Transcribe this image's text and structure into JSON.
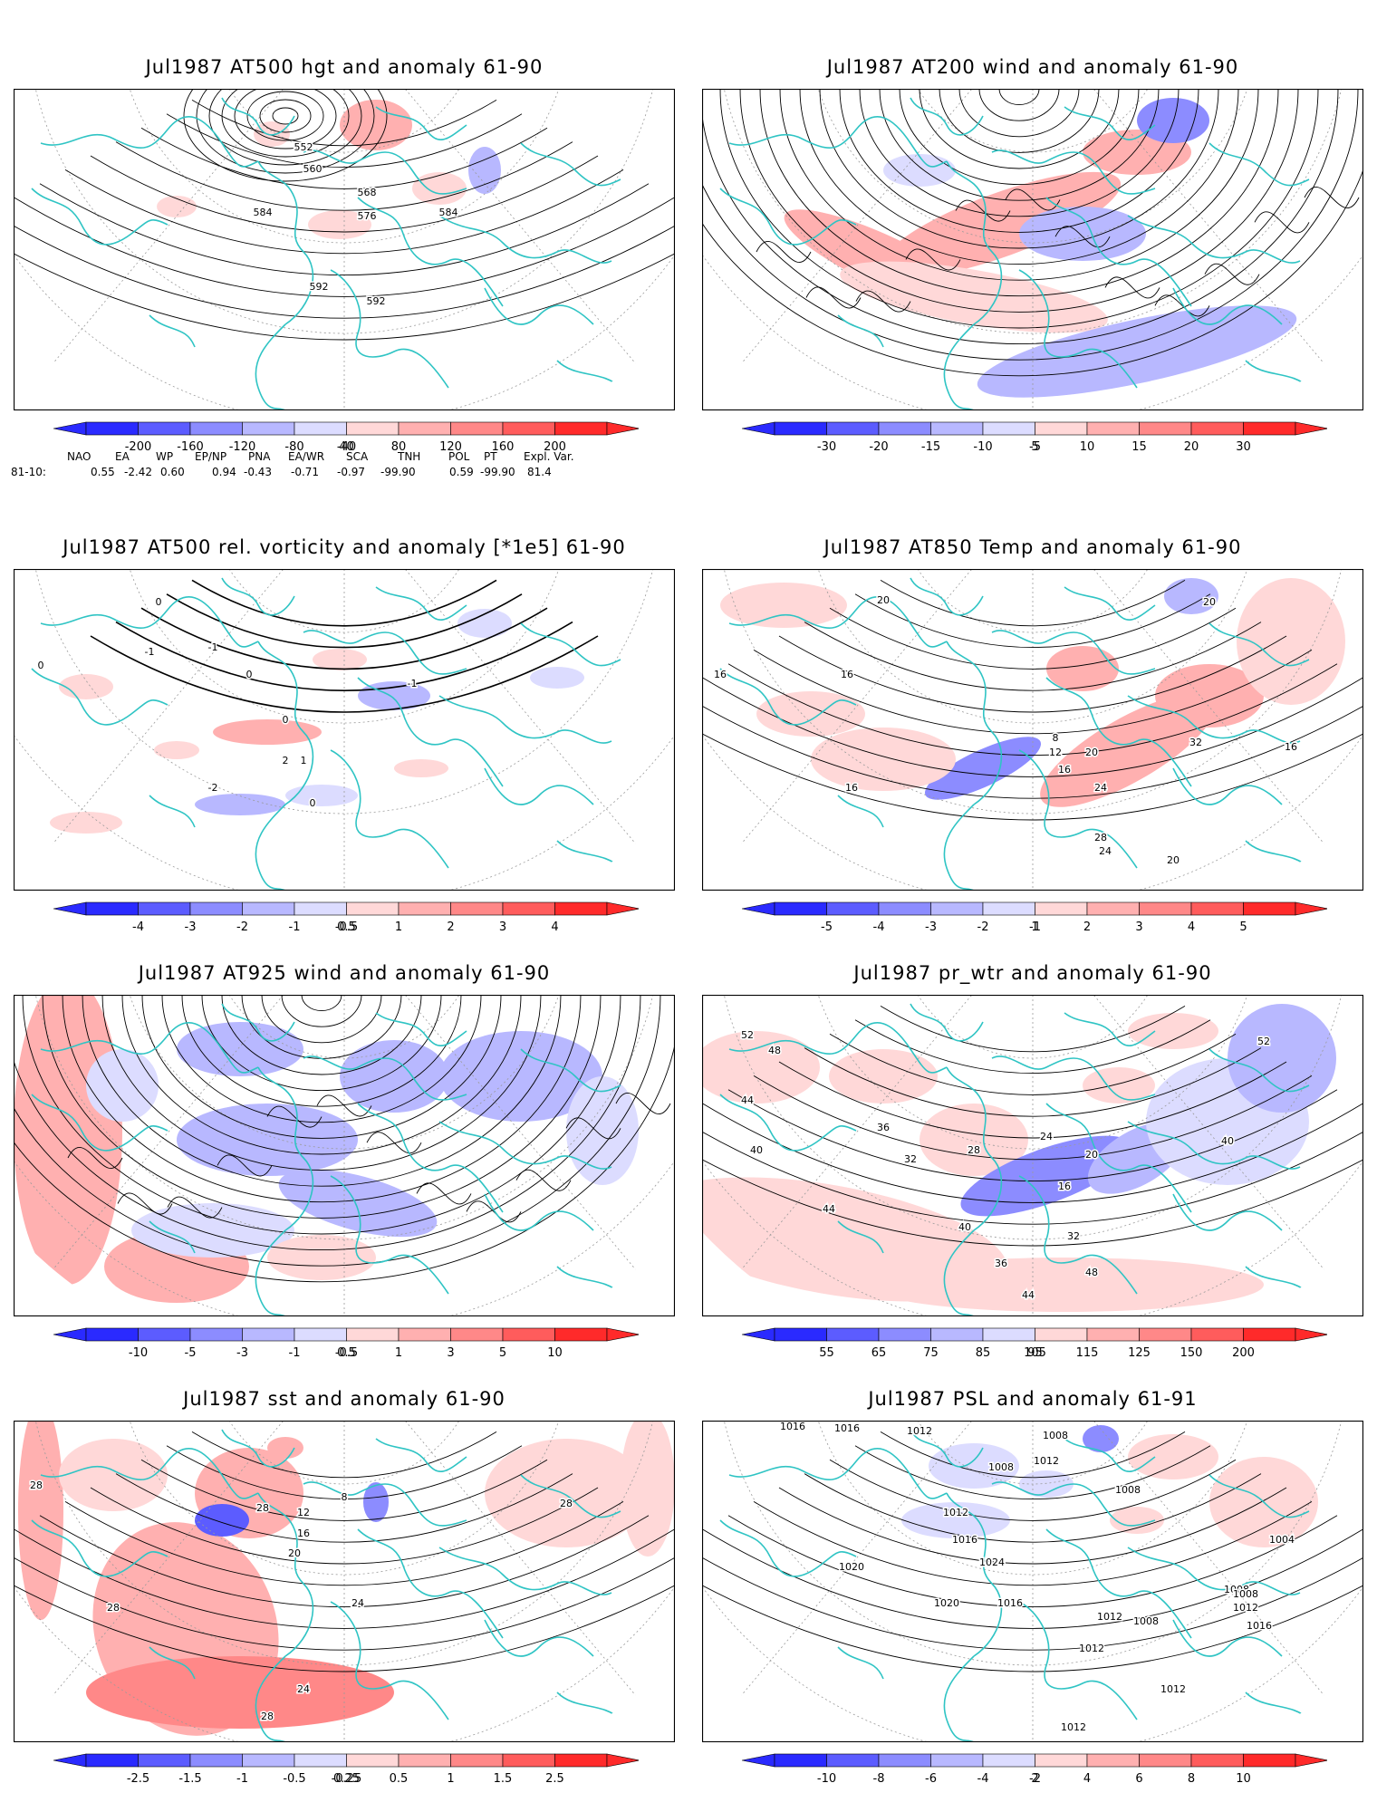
{
  "colors": {
    "coast": "#2fc4c4",
    "grid": "#9a9a9a",
    "contour": "#000000",
    "neg_scale": [
      "#2a2aff",
      "#5c5cff",
      "#8c8cff",
      "#b8b8ff",
      "#dcdcff"
    ],
    "pos_scale": [
      "#ffd8d8",
      "#ffb0b0",
      "#ff8888",
      "#ff5c5c",
      "#ff2a2a"
    ]
  },
  "panels": [
    {
      "title": "Jul1987 AT500 hgt and anomaly 61-90",
      "kind": "height",
      "colorbar": [
        "-200",
        "-160",
        "-120",
        "-80",
        "-40",
        "40",
        "80",
        "120",
        "160",
        "200"
      ],
      "contour_labels": [
        "552",
        "560",
        "568",
        "576",
        "584",
        "584",
        "592",
        "592"
      ]
    },
    {
      "title": "Jul1987 AT200 wind and anomaly 61-90",
      "kind": "wind",
      "colorbar": [
        "-30",
        "-20",
        "-15",
        "-10",
        "-5",
        "5",
        "10",
        "15",
        "20",
        "30"
      ],
      "contour_labels": []
    },
    {
      "title": "Jul1987 AT500 rel. vorticity and anomaly [*1e5] 61-90",
      "kind": "vorticity",
      "colorbar": [
        "-4",
        "-3",
        "-2",
        "-1",
        "-0.5",
        "0.5",
        "1",
        "2",
        "3",
        "4"
      ],
      "contour_labels": [
        "0",
        "0",
        "0",
        "-1",
        "1",
        "-2",
        "2",
        "-1",
        "0",
        "-1",
        "0"
      ]
    },
    {
      "title": "Jul1987 AT850 Temp and anomaly 61-90",
      "kind": "temp",
      "colorbar": [
        "-5",
        "-4",
        "-3",
        "-2",
        "-1",
        "1",
        "2",
        "3",
        "4",
        "5"
      ],
      "contour_labels": [
        "20",
        "16",
        "16",
        "8",
        "12",
        "16",
        "20",
        "24",
        "28",
        "24",
        "20",
        "32",
        "16",
        "16",
        "20"
      ]
    },
    {
      "title": "Jul1987 AT925 wind and anomaly 61-90",
      "kind": "wind925",
      "colorbar": [
        "-10",
        "-5",
        "-3",
        "-1",
        "-0.5",
        "0.5",
        "1",
        "3",
        "5",
        "10"
      ],
      "contour_labels": []
    },
    {
      "title": "Jul1987 pr_wtr and anomaly 61-90",
      "kind": "prwtr",
      "colorbar": [
        "55",
        "65",
        "75",
        "85",
        "95",
        "105",
        "115",
        "125",
        "150",
        "200"
      ],
      "contour_labels": [
        "52",
        "48",
        "44",
        "40",
        "36",
        "32",
        "28",
        "24",
        "20",
        "16",
        "44",
        "40",
        "32",
        "36",
        "40",
        "44",
        "48",
        "52"
      ]
    },
    {
      "title": "Jul1987 sst and anomaly 61-90",
      "kind": "sst",
      "colorbar": [
        "-2.5",
        "-1.5",
        "-1",
        "-0.5",
        "-0.25",
        "0.25",
        "0.5",
        "1",
        "1.5",
        "2.5"
      ],
      "contour_labels": [
        "28",
        "28",
        "28",
        "24",
        "28",
        "28",
        "20",
        "16",
        "12",
        "8",
        "24"
      ]
    },
    {
      "title": "Jul1987 PSL and anomaly 61-91",
      "kind": "psl",
      "colorbar": [
        "-10",
        "-8",
        "-6",
        "-4",
        "-2",
        "2",
        "4",
        "6",
        "8",
        "10"
      ],
      "contour_labels": [
        "1016",
        "1016",
        "1012",
        "1008",
        "1012",
        "1008",
        "1008",
        "1012",
        "1016",
        "1020",
        "1024",
        "1016",
        "1020",
        "1012",
        "1008",
        "1012",
        "1008",
        "1004",
        "1008",
        "1012",
        "1016",
        "1012",
        "1012"
      ]
    }
  ],
  "indices": {
    "headers": [
      "NAO",
      "EA",
      "WP",
      "EP/NP",
      "PNA",
      "EA/WR",
      "SCA",
      "TNH",
      "POL",
      "PT",
      "Expl. Var."
    ],
    "row_label": "81-10:",
    "values": [
      "0.55",
      "-2.42",
      "0.60",
      "0.94",
      "-0.43",
      "-0.71",
      "-0.97",
      "-99.90",
      "0.59",
      "-99.90",
      "81.4"
    ]
  }
}
